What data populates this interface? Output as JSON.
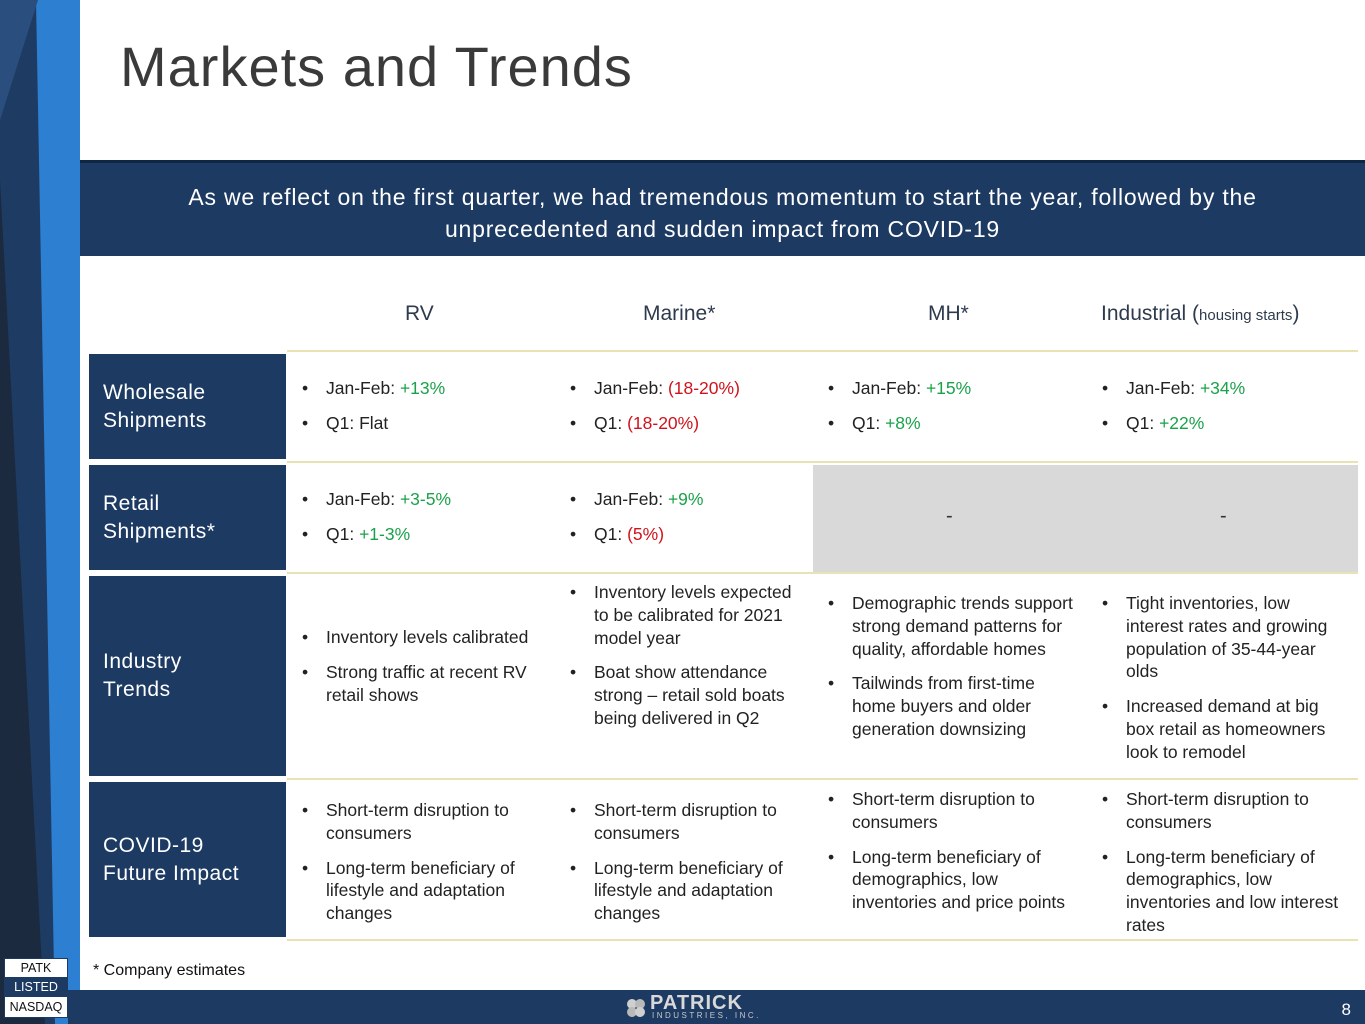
{
  "slide": {
    "title": "Markets and Trends",
    "banner_line1": "As we reflect on the first quarter, we had tremendous momentum to start the year, followed by the",
    "banner_line2": "unprecedented and sudden impact from COVID-19",
    "columns": [
      {
        "label": "RV"
      },
      {
        "label": "Marine*"
      },
      {
        "label": "MH*"
      },
      {
        "label": "Industrial (",
        "small": "housing starts",
        "close": ")"
      }
    ],
    "rows": {
      "wholesale": {
        "label": "Wholesale\nShipments",
        "rv": [
          [
            "Jan-Feb: ",
            "+13%"
          ],
          [
            "Q1: Flat",
            ""
          ]
        ],
        "marine": [
          [
            "Jan-Feb: ",
            "(18-20%)"
          ],
          [
            "Q1: ",
            "(18-20%)"
          ]
        ],
        "mh": [
          [
            "Jan-Feb: ",
            "+15%"
          ],
          [
            "Q1: ",
            "+8%"
          ]
        ],
        "industrial": [
          [
            "Jan-Feb: ",
            "+34%"
          ],
          [
            "Q1: ",
            "+22%"
          ]
        ]
      },
      "retail": {
        "label": "Retail\nShipments*",
        "rv": [
          [
            "Jan-Feb: ",
            "+3-5%"
          ],
          [
            "Q1: ",
            "+1-3%"
          ]
        ],
        "marine": [
          [
            "Jan-Feb: ",
            "+9%"
          ],
          [
            "Q1: ",
            "(5%)"
          ]
        ],
        "mh_dash": "-",
        "industrial_dash": "-"
      },
      "industry": {
        "label": "Industry\nTrends",
        "rv": [
          "Inventory levels calibrated",
          "Strong traffic at recent RV retail shows"
        ],
        "marine": [
          "Inventory levels expected to be calibrated for 2021 model year",
          "Boat show attendance strong – retail sold boats being delivered in Q2"
        ],
        "mh": [
          "Demographic trends support strong demand patterns for quality, affordable homes",
          "Tailwinds from first-time home buyers and older generation downsizing"
        ],
        "industrial": [
          "Tight inventories, low interest rates and growing population of 35-44-year olds",
          "Increased demand at big box retail as homeowners look to remodel"
        ]
      },
      "covid": {
        "label": "COVID-19\nFuture Impact",
        "rv": [
          "Short-term disruption to consumers",
          "Long-term beneficiary of lifestyle and adaptation changes"
        ],
        "marine": [
          "Short-term disruption to consumers",
          "Long-term beneficiary of lifestyle and adaptation changes"
        ],
        "mh": [
          "Short-term disruption to consumers",
          "Long-term beneficiary of demographics, low inventories and price points"
        ],
        "industrial": [
          "Short-term disruption to consumers",
          "Long-term beneficiary of demographics, low inventories and low interest rates"
        ]
      }
    },
    "footnote": "* Company estimates",
    "badge": {
      "ticker": "PATK",
      "listed": "LISTED",
      "exchange": "NASDAQ"
    },
    "logo": {
      "name": "PATRICK",
      "sub": "INDUSTRIES, INC."
    },
    "page_number": "8"
  },
  "colors": {
    "navy": "#1d3a63",
    "green": "#1aa24a",
    "red": "#d0121b",
    "grey": "#d9d9d9"
  }
}
